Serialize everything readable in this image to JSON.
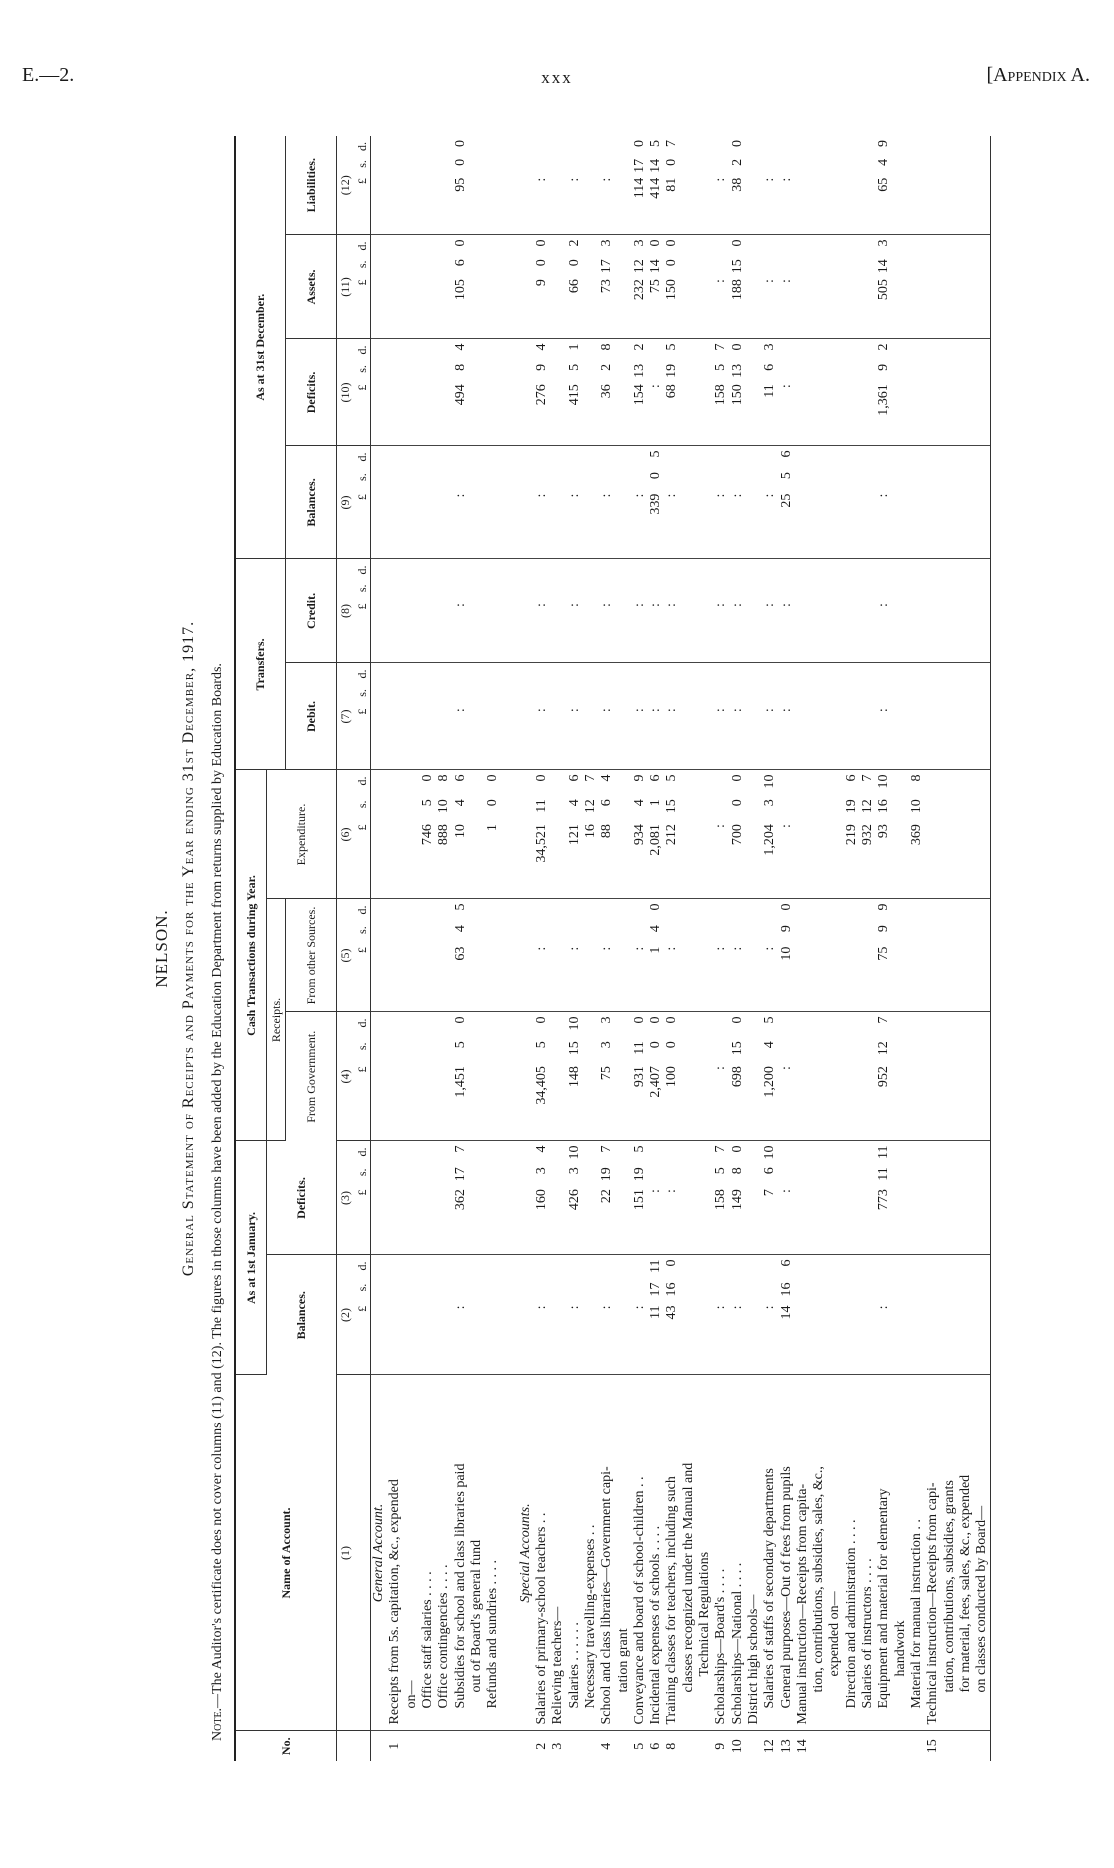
{
  "page_header": {
    "left": "E.—2.",
    "center": "xxx",
    "right": "[Appendix A."
  },
  "board": "NELSON.",
  "statement_title": "General Statement of Receipts and Payments for the Year ending 31st December, 1917.",
  "note": {
    "lead": "Note.",
    "text": "—The Auditor's certificate does not cover columns (11) and (12).   The figures in those columns have been added by the Education Department from returns supplied by Education Boards."
  },
  "header": {
    "no": "No.",
    "name": "Name of Account.",
    "groups": {
      "jan": "As at 1st January.",
      "cash": "Cash Transactions during Year.",
      "receipts": "Receipts.",
      "transfers": "Transfers.",
      "dec": "As at 31st December."
    },
    "columns": [
      {
        "num": "(1)",
        "label": "Name of Account."
      },
      {
        "num": "(2)",
        "label": "Balances."
      },
      {
        "num": "(3)",
        "label": "Deficits."
      },
      {
        "num": "(4)",
        "label": "From Government."
      },
      {
        "num": "(5)",
        "label": "From other Sources."
      },
      {
        "num": "(6)",
        "label": "Expenditure."
      },
      {
        "num": "(7)",
        "label": "Debit."
      },
      {
        "num": "(8)",
        "label": "Credit."
      },
      {
        "num": "(9)",
        "label": "Balances."
      },
      {
        "num": "(10)",
        "label": "Deficits."
      },
      {
        "num": "(11)",
        "label": "Assets."
      },
      {
        "num": "(12)",
        "label": "Liabilities."
      }
    ],
    "currency": [
      "£",
      "s.",
      "d."
    ]
  },
  "lines": [
    {
      "no": "",
      "text": "General Account.",
      "style": "head"
    },
    {
      "no": "1",
      "text": "Receipts from 5s. capitation, &c., expended"
    },
    {
      "no": "",
      "text": "on—",
      "indent": 1
    },
    {
      "no": "",
      "text": "Office staff salaries   . .   . .",
      "indent": 1,
      "v": {
        "6": [
          "746",
          "5",
          "0"
        ]
      }
    },
    {
      "no": "",
      "text": "Office contingencies   . .   . .",
      "indent": 1,
      "v": {
        "6": [
          "888",
          "10",
          "8"
        ]
      }
    },
    {
      "no": "",
      "text": "Subsidies for school and class libraries paid",
      "indent": 1,
      "v": {
        "2": ":",
        "3": [
          "362",
          "17",
          "7"
        ],
        "4": [
          "1,451",
          "5",
          "0"
        ],
        "5": [
          "63",
          "4",
          "5"
        ],
        "6": [
          "10",
          "4",
          "6"
        ],
        "7": ":",
        "8": ":",
        "9": ":",
        "10": [
          "494",
          "8",
          "4"
        ],
        "11": [
          "105",
          "6",
          "0"
        ],
        "12": [
          "95",
          "0",
          "0"
        ]
      }
    },
    {
      "no": "",
      "text": "out of Board's general fund",
      "indent": 2
    },
    {
      "no": "",
      "text": "Refunds and sundries . .   . .",
      "indent": 1,
      "v": {
        "6": [
          "1",
          "0",
          "0"
        ]
      }
    },
    {
      "no": "",
      "text": ""
    },
    {
      "no": "",
      "text": "Special Accounts.",
      "style": "head"
    },
    {
      "no": "2",
      "text": "Salaries of primary-school teachers   . .",
      "v": {
        "2": ":",
        "3": [
          "160",
          "3",
          "4"
        ],
        "4": [
          "34,405",
          "5",
          "0"
        ],
        "5": ":",
        "6": [
          "34,521",
          "11",
          "0"
        ],
        "7": ":",
        "8": ":",
        "9": ":",
        "10": [
          "276",
          "9",
          "4"
        ],
        "11": [
          "9",
          "0",
          "0"
        ],
        "12": ":"
      }
    },
    {
      "no": "3",
      "text": "Relieving teachers—"
    },
    {
      "no": "",
      "text": "Salaries   . .   . .   . .",
      "indent": 1,
      "v": {
        "2": ":",
        "3": [
          "426",
          "3",
          "10"
        ],
        "4": [
          "148",
          "15",
          "10"
        ],
        "5": ":",
        "6": [
          "121",
          "4",
          "6"
        ],
        "7": ":",
        "8": ":",
        "9": ":",
        "10": [
          "415",
          "5",
          "1"
        ],
        "11": [
          "66",
          "0",
          "2"
        ],
        "12": ":"
      }
    },
    {
      "no": "",
      "text": "Necessary travelling-expenses   . .",
      "indent": 1,
      "v": {
        "6": [
          "16",
          "12",
          "7"
        ]
      }
    },
    {
      "no": "4",
      "text": "School and class libraries—Government capi-",
      "v": {
        "2": ":",
        "3": [
          "22",
          "19",
          "7"
        ],
        "4": [
          "75",
          "3",
          "3"
        ],
        "5": ":",
        "6": [
          "88",
          "6",
          "4"
        ],
        "7": ":",
        "8": ":",
        "9": ":",
        "10": [
          "36",
          "2",
          "8"
        ],
        "11": [
          "73",
          "17",
          "3"
        ],
        "12": ":"
      }
    },
    {
      "no": "",
      "text": "tation grant",
      "indent": 2
    },
    {
      "no": "5",
      "text": "Conveyance and board of school-children   . .",
      "v": {
        "2": ":",
        "3": [
          "151",
          "19",
          "5"
        ],
        "4": [
          "931",
          "11",
          "0"
        ],
        "5": ":",
        "6": [
          "934",
          "4",
          "9"
        ],
        "7": ":",
        "8": ":",
        "9": ":",
        "10": [
          "154",
          "13",
          "2"
        ],
        "11": [
          "232",
          "12",
          "3"
        ],
        "12": [
          "114",
          "17",
          "0"
        ]
      }
    },
    {
      "no": "6",
      "text": "Incidental expenses of schools   . .   . .",
      "v": {
        "2": [
          "11",
          "17",
          "11"
        ],
        "3": ":",
        "4": [
          "2,407",
          "0",
          "0"
        ],
        "5": [
          "1",
          "4",
          "0"
        ],
        "6": [
          "2,081",
          "1",
          "6"
        ],
        "7": ":",
        "8": ":",
        "9": [
          "339",
          "0",
          "5"
        ],
        "10": ":",
        "11": [
          "75",
          "14",
          "0"
        ],
        "12": [
          "414",
          "14",
          "5"
        ]
      }
    },
    {
      "no": "8",
      "text": "Training classes for teachers, including such",
      "v": {
        "2": [
          "43",
          "16",
          "0"
        ],
        "3": ":",
        "4": [
          "100",
          "0",
          "0"
        ],
        "5": ":",
        "6": [
          "212",
          "15",
          "5"
        ],
        "7": ":",
        "8": ":",
        "9": ":",
        "10": [
          "68",
          "19",
          "5"
        ],
        "11": [
          "150",
          "0",
          "0"
        ],
        "12": [
          "81",
          "0",
          "7"
        ]
      }
    },
    {
      "no": "",
      "text": "classes recognized under the Manual and",
      "indent": 2
    },
    {
      "no": "",
      "text": "Technical Regulations",
      "indent": 3
    },
    {
      "no": "9",
      "text": "Scholarships—Board's   . .   . .",
      "v": {
        "2": ":",
        "3": [
          "158",
          "5",
          "7"
        ],
        "4": ":",
        "5": ":",
        "6": ":",
        "7": ":",
        "8": ":",
        "9": ":",
        "10": [
          "158",
          "5",
          "7"
        ],
        "11": ":",
        "12": ":"
      }
    },
    {
      "no": "10",
      "text": "Scholarships—National . .   . .",
      "v": {
        "2": ":",
        "3": [
          "149",
          "8",
          "0"
        ],
        "4": [
          "698",
          "15",
          "0"
        ],
        "5": ":",
        "6": [
          "700",
          "0",
          "0"
        ],
        "7": ":",
        "8": ":",
        "9": ":",
        "10": [
          "150",
          "13",
          "0"
        ],
        "11": [
          "188",
          "15",
          "0"
        ],
        "12": [
          "38",
          "2",
          "0"
        ]
      }
    },
    {
      "no": "",
      "text": "District high schools—"
    },
    {
      "no": "12",
      "text": "Salaries of staffs of secondary departments",
      "indent": 1,
      "v": {
        "2": ":",
        "3": [
          "7",
          "6",
          "10"
        ],
        "4": [
          "1,200",
          "4",
          "5"
        ],
        "5": ":",
        "6": [
          "1,204",
          "3",
          "10"
        ],
        "7": ":",
        "8": ":",
        "9": ":",
        "10": [
          "11",
          "6",
          "3"
        ],
        "11": ":",
        "12": ":"
      }
    },
    {
      "no": "13",
      "text": "General purposes—Out of fees from pupils",
      "indent": 1,
      "v": {
        "2": [
          "14",
          "16",
          "6"
        ],
        "3": ":",
        "4": ":",
        "5": [
          "10",
          "9",
          "0"
        ],
        "6": ":",
        "7": ":",
        "8": ":",
        "9": [
          "25",
          "5",
          "6"
        ],
        "10": ":",
        "11": ":",
        "12": ":"
      }
    },
    {
      "no": "14",
      "text": "Manual instruction—Receipts from capita-"
    },
    {
      "no": "",
      "text": "tion, contributions, subsidies, sales, &c.,",
      "indent": 2
    },
    {
      "no": "",
      "text": "expended on—",
      "indent": 3
    },
    {
      "no": "",
      "text": "Direction and administration   . .   . .",
      "indent": 1,
      "v": {
        "6": [
          "219",
          "19",
          "6"
        ]
      }
    },
    {
      "no": "",
      "text": "Salaries of instructors . .   . .",
      "indent": 1,
      "v": {
        "6": [
          "932",
          "12",
          "7"
        ]
      }
    },
    {
      "no": "",
      "text": "Equipment and material for elementary",
      "indent": 1,
      "v": {
        "2": ":",
        "3": [
          "773",
          "11",
          "11"
        ],
        "4": [
          "952",
          "12",
          "7"
        ],
        "5": [
          "75",
          "9",
          "9"
        ],
        "6": [
          "93",
          "16",
          "10"
        ],
        "7": ":",
        "8": ":",
        "9": ":",
        "10": [
          "1,361",
          "9",
          "2"
        ],
        "11": [
          "505",
          "14",
          "3"
        ],
        "12": [
          "65",
          "4",
          "9"
        ]
      }
    },
    {
      "no": "",
      "text": "handwork",
      "indent": 3
    },
    {
      "no": "",
      "text": "Material for manual instruction   . .",
      "indent": 1,
      "v": {
        "6": [
          "369",
          "10",
          "8"
        ]
      }
    },
    {
      "no": "15",
      "text": "Technical instruction—Receipts from capi-"
    },
    {
      "no": "",
      "text": "tation, contributions, subsidies, grants",
      "indent": 2
    },
    {
      "no": "",
      "text": "for material, fees, sales, &c., expended",
      "indent": 2
    },
    {
      "no": "",
      "text": "on classes conducted by Board—",
      "indent": 2
    }
  ]
}
